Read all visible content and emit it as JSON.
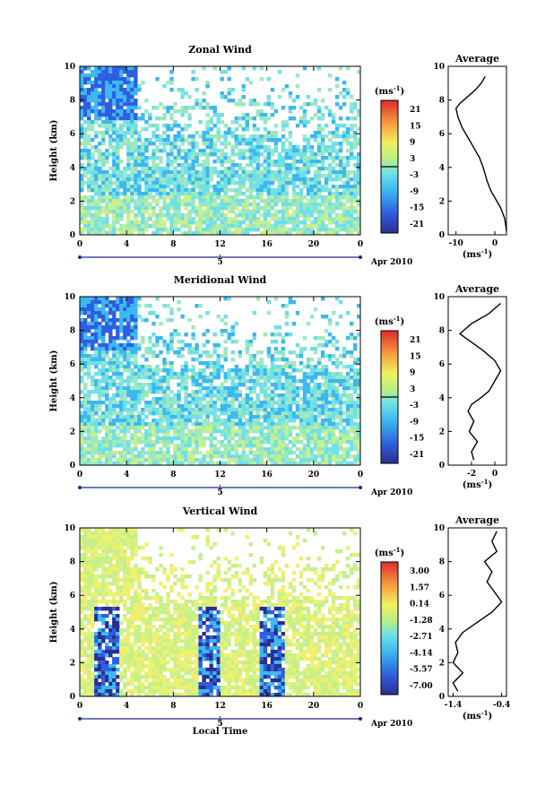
{
  "chart_data": [
    {
      "type": "heatmap",
      "title": "Zonal Wind",
      "xlabel": "",
      "ylabel": "Height (km)",
      "xlim": [
        0,
        24
      ],
      "ylim": [
        0,
        10
      ],
      "x_ticks": [
        "0",
        "4",
        "8",
        "12",
        "16",
        "20",
        "0"
      ],
      "y_ticks": [
        "0",
        "2",
        "4",
        "6",
        "8",
        "10"
      ],
      "date_day": "5",
      "date_label": "Apr 2010",
      "colorbar_unit": "(ms",
      "colorbar_unit_sup": "-1",
      "colorbar_unit_close": ")",
      "colorbar_ticks": [
        "21",
        "15",
        "9",
        "3",
        "-3",
        "-9",
        "-15",
        "-21"
      ],
      "zero_line_value": 0,
      "average": {
        "title": "Average",
        "xlabel": "(ms",
        "xlabel_sup": "-1",
        "xlabel_close": ")",
        "xlim": [
          -12,
          3
        ],
        "x_ticks": [
          "-10",
          "0"
        ],
        "y_ticks": [
          "0",
          "2",
          "4",
          "6",
          "8",
          "10"
        ],
        "profile": [
          [
            3,
            0.2
          ],
          [
            2.8,
            0.6
          ],
          [
            2.5,
            1.0
          ],
          [
            1.5,
            1.6
          ],
          [
            0.5,
            2.0
          ],
          [
            -1,
            2.6
          ],
          [
            -2,
            3.2
          ],
          [
            -3,
            4.0
          ],
          [
            -4,
            4.6
          ],
          [
            -5.5,
            5.2
          ],
          [
            -7,
            5.8
          ],
          [
            -8.5,
            6.4
          ],
          [
            -9.5,
            7.0
          ],
          [
            -10,
            7.5
          ],
          [
            -9,
            7.8
          ],
          [
            -7,
            8.2
          ],
          [
            -5,
            8.6
          ],
          [
            -3.5,
            9.0
          ],
          [
            -2.5,
            9.4
          ]
        ]
      }
    },
    {
      "type": "heatmap",
      "title": "Meridional Wind",
      "xlabel": "",
      "ylabel": "Height (km)",
      "xlim": [
        0,
        24
      ],
      "ylim": [
        0,
        10
      ],
      "x_ticks": [
        "0",
        "4",
        "8",
        "12",
        "16",
        "20",
        "0"
      ],
      "y_ticks": [
        "0",
        "2",
        "4",
        "6",
        "8",
        "10"
      ],
      "date_day": "5",
      "date_label": "Apr 2010",
      "colorbar_unit": "(ms",
      "colorbar_unit_sup": "-1",
      "colorbar_unit_close": ")",
      "colorbar_ticks": [
        "21",
        "15",
        "9",
        "3",
        "-3",
        "-9",
        "-15",
        "-21"
      ],
      "zero_line_value": 0,
      "average": {
        "title": "Average",
        "xlabel": "(ms",
        "xlabel_sup": "-1",
        "xlabel_close": ")",
        "xlim": [
          -4,
          1
        ],
        "x_ticks": [
          "-2",
          "0"
        ],
        "y_ticks": [
          "0",
          "2",
          "4",
          "6",
          "8",
          "10"
        ],
        "profile": [
          [
            -1.8,
            0.3
          ],
          [
            -2.0,
            0.8
          ],
          [
            -1.5,
            1.4
          ],
          [
            -2.2,
            2.0
          ],
          [
            -1.8,
            2.6
          ],
          [
            -2.3,
            3.2
          ],
          [
            -2.0,
            3.6
          ],
          [
            -1.2,
            4.0
          ],
          [
            -0.5,
            4.4
          ],
          [
            0,
            5.0
          ],
          [
            0.5,
            5.6
          ],
          [
            0,
            6.2
          ],
          [
            -1.0,
            6.8
          ],
          [
            -2.0,
            7.3
          ],
          [
            -3.0,
            7.8
          ],
          [
            -2.0,
            8.4
          ],
          [
            -0.5,
            9.0
          ],
          [
            0.5,
            9.6
          ]
        ]
      }
    },
    {
      "type": "heatmap",
      "title": "Vertical Wind",
      "xlabel": "Local Time",
      "ylabel": "Height (km)",
      "xlim": [
        0,
        24
      ],
      "ylim": [
        0,
        10
      ],
      "x_ticks": [
        "0",
        "4",
        "8",
        "12",
        "16",
        "20",
        "0"
      ],
      "y_ticks": [
        "0",
        "2",
        "4",
        "6",
        "8",
        "10"
      ],
      "date_day": "5",
      "date_label": "Apr 2010",
      "colorbar_unit": "(ms",
      "colorbar_unit_sup": "-1",
      "colorbar_unit_close": ")",
      "colorbar_ticks": [
        "3.00",
        "1.57",
        "0.14",
        "-1.28",
        "-2.71",
        "-4.14",
        "-5.57",
        "-7.00"
      ],
      "average": {
        "title": "Average",
        "xlabel": "(ms",
        "xlabel_sup": "-1",
        "xlabel_close": ")",
        "xlim": [
          -1.5,
          -0.3
        ],
        "x_ticks": [
          "-1.4",
          "-0.4"
        ],
        "y_ticks": [
          "0",
          "2",
          "4",
          "6",
          "8",
          "10"
        ],
        "profile": [
          [
            -1.3,
            0.3
          ],
          [
            -1.4,
            0.8
          ],
          [
            -1.2,
            1.4
          ],
          [
            -1.4,
            2.0
          ],
          [
            -1.3,
            2.6
          ],
          [
            -1.35,
            3.2
          ],
          [
            -1.2,
            3.8
          ],
          [
            -0.9,
            4.4
          ],
          [
            -0.6,
            5.0
          ],
          [
            -0.4,
            5.6
          ],
          [
            -0.55,
            6.2
          ],
          [
            -0.7,
            6.8
          ],
          [
            -0.6,
            7.4
          ],
          [
            -0.75,
            8.0
          ],
          [
            -0.5,
            8.6
          ],
          [
            -0.6,
            9.2
          ],
          [
            -0.5,
            9.8
          ]
        ]
      }
    }
  ]
}
